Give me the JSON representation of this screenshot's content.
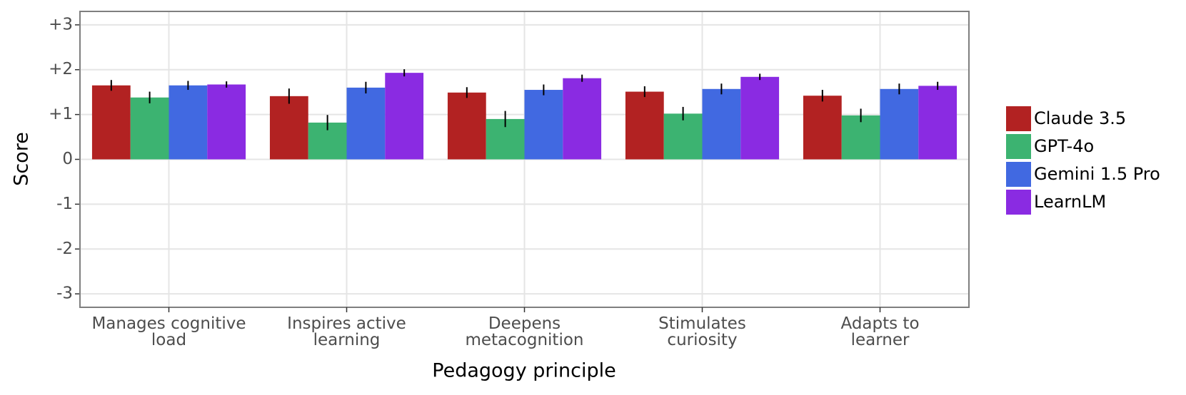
{
  "chart_data": {
    "type": "bar",
    "x_label": "Pedagogy principle",
    "y_label": "Score",
    "categories": [
      "Manages cognitive\nload",
      "Inspires active\nlearning",
      "Deepens\nmetacognition",
      "Stimulates\ncuriosity",
      "Adapts to\nlearner"
    ],
    "series": [
      {
        "name": "Claude 3.5",
        "color": "#b22222",
        "values": [
          1.65,
          1.41,
          1.49,
          1.51,
          1.42
        ],
        "errors": [
          0.12,
          0.17,
          0.12,
          0.12,
          0.13
        ]
      },
      {
        "name": "GPT-4o",
        "color": "#3cb371",
        "values": [
          1.38,
          0.82,
          0.9,
          1.02,
          0.98
        ],
        "errors": [
          0.13,
          0.17,
          0.18,
          0.15,
          0.15
        ]
      },
      {
        "name": "Gemini 1.5 Pro",
        "color": "#4169e1",
        "values": [
          1.65,
          1.6,
          1.55,
          1.57,
          1.57
        ],
        "errors": [
          0.1,
          0.13,
          0.12,
          0.12,
          0.12
        ]
      },
      {
        "name": "LearnLM",
        "color": "#8a2be2",
        "values": [
          1.67,
          1.93,
          1.81,
          1.84,
          1.64
        ],
        "errors": [
          0.07,
          0.08,
          0.08,
          0.07,
          0.09
        ]
      }
    ],
    "ylim": [
      -3.3,
      3.3
    ],
    "yticks": [
      {
        "value": 3,
        "label": "+3"
      },
      {
        "value": 2,
        "label": "+2"
      },
      {
        "value": 1,
        "label": "+1"
      },
      0,
      -1,
      -2,
      -3
    ],
    "grid": true,
    "legend": "right"
  }
}
